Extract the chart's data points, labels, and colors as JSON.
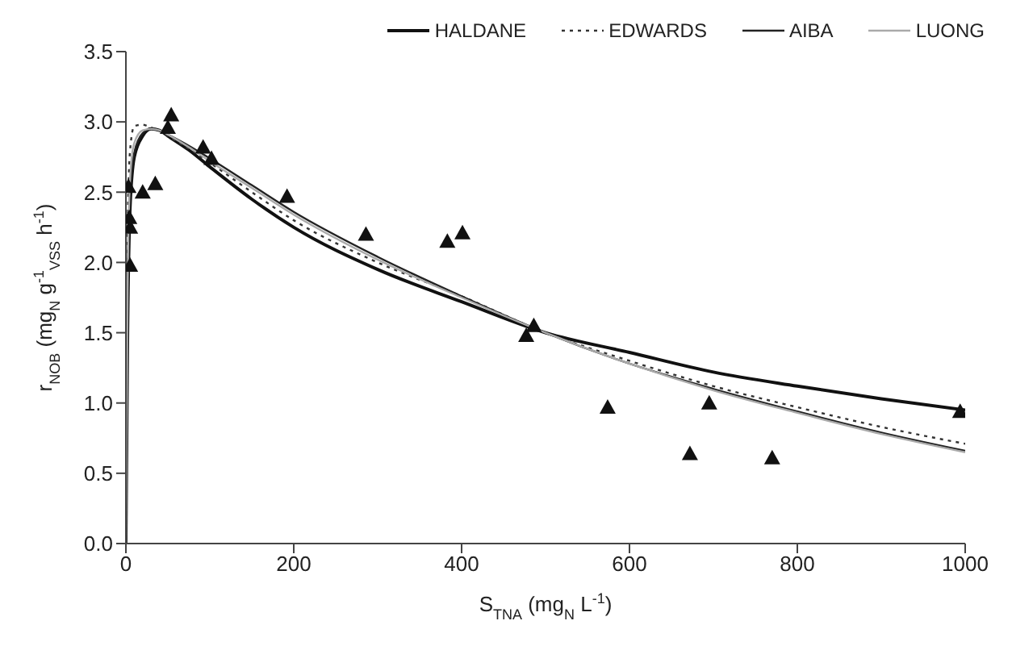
{
  "chart_data": {
    "type": "line",
    "xlabel": "S$_{TNA}$ (mg$_{N}$ L$^{-1}$)",
    "ylabel": "r$_{NOB}$ (mg$_{N}$ g$^{-1}$$_{VSS}$ h$^{-1}$)",
    "xlim": [
      0,
      1000
    ],
    "xticks": [
      0,
      200,
      400,
      600,
      800,
      1000
    ],
    "ylim": [
      0,
      3.5
    ],
    "yticks": [
      {
        "value": 0,
        "label": "0.0"
      },
      {
        "value": 0.5,
        "label": "0.5"
      },
      {
        "value": 1,
        "label": "1.0"
      },
      {
        "value": 1.5,
        "label": "1.5"
      },
      {
        "value": 2,
        "label": "2.0"
      },
      {
        "value": 2.5,
        "label": "2.5"
      },
      {
        "value": 3,
        "label": "3.0"
      },
      {
        "value": 3.5,
        "label": "3.5"
      }
    ],
    "grid": false,
    "legend": "top right",
    "marker": "none",
    "series": [
      {
        "name": "HALDANE",
        "color": "#111111",
        "line_style": "solid",
        "x": [
          0,
          2,
          5,
          10,
          20,
          30,
          40,
          50,
          75,
          100,
          150,
          200,
          300,
          400,
          500,
          600,
          700,
          800,
          900,
          1000
        ],
        "values": [
          0,
          1.5,
          2.4,
          2.75,
          2.9,
          2.95,
          2.94,
          2.9,
          2.8,
          2.68,
          2.45,
          2.25,
          1.95,
          1.72,
          1.5,
          1.36,
          1.22,
          1.12,
          1.03,
          0.95
        ]
      },
      {
        "name": "EDWARDS",
        "color": "#333333",
        "line_style": "dotted",
        "x": [
          0,
          2,
          5,
          10,
          20,
          30,
          40,
          50,
          75,
          100,
          150,
          200,
          300,
          400,
          500,
          600,
          700,
          800,
          900,
          1000
        ],
        "values": [
          0,
          2.2,
          2.8,
          2.97,
          2.98,
          2.96,
          2.94,
          2.9,
          2.81,
          2.71,
          2.5,
          2.3,
          2.0,
          1.76,
          1.5,
          1.3,
          1.12,
          0.97,
          0.83,
          0.71
        ]
      },
      {
        "name": "AIBA",
        "color": "#222222",
        "line_style": "solid",
        "x": [
          0,
          2,
          5,
          10,
          20,
          30,
          40,
          50,
          75,
          100,
          150,
          200,
          300,
          400,
          500,
          600,
          700,
          800,
          900,
          1000
        ],
        "values": [
          0,
          1.6,
          2.45,
          2.78,
          2.92,
          2.95,
          2.94,
          2.91,
          2.83,
          2.74,
          2.55,
          2.36,
          2.04,
          1.76,
          1.5,
          1.28,
          1.1,
          0.94,
          0.79,
          0.66
        ]
      },
      {
        "name": "LUONG",
        "color": "#aaaaaa",
        "line_style": "solid",
        "x": [
          0,
          2,
          5,
          10,
          20,
          30,
          40,
          50,
          75,
          100,
          150,
          200,
          300,
          400,
          500,
          600,
          700,
          800,
          900,
          1000
        ],
        "values": [
          0,
          1.8,
          2.6,
          2.85,
          2.94,
          2.95,
          2.94,
          2.91,
          2.82,
          2.72,
          2.53,
          2.34,
          2.02,
          1.75,
          1.5,
          1.28,
          1.09,
          0.93,
          0.78,
          0.65
        ]
      },
      {
        "type": "scatter",
        "color": "#111111",
        "marker": "triangle",
        "x": [
          3,
          4,
          5,
          5,
          20,
          35,
          50,
          54,
          92,
          102,
          192,
          286,
          383,
          401,
          477,
          486,
          574,
          672,
          695,
          770,
          994
        ],
        "values": [
          2.54,
          2.32,
          2.25,
          1.98,
          2.5,
          2.56,
          2.96,
          3.05,
          2.82,
          2.74,
          2.47,
          2.2,
          2.15,
          2.21,
          1.48,
          1.55,
          0.97,
          0.64,
          1.0,
          0.61,
          0.94
        ]
      }
    ]
  }
}
